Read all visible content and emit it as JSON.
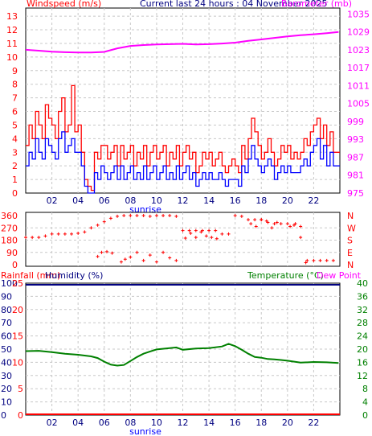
{
  "colors": {
    "windspeed": "#ff0000",
    "wind_avg": "#0000ff",
    "barometer": "#ff00ff",
    "wind_dir": "#ff0000",
    "rainfall": "#ff0000",
    "humidity": "#000080",
    "temperature": "#008000",
    "dew_point": "#ff00ff",
    "grid": "#c8c8c8",
    "sunrise": "#0000ff"
  },
  "chart_data": [
    {
      "type": "line",
      "title": "Current last 24 hours : 04 November 2025",
      "left_axis_label": "Windspeed (m/s)",
      "right_axis_label": "Barometer (mb)",
      "x_tick_labels": [
        "02",
        "04",
        "06",
        "08",
        "10",
        "12",
        "14",
        "16",
        "18",
        "20",
        "22"
      ],
      "x_annotation": "sunrise",
      "left_ticks": [
        "0",
        "1",
        "2",
        "3",
        "4",
        "5",
        "6",
        "7",
        "8",
        "9",
        "10",
        "11",
        "12",
        "13"
      ],
      "right_ticks": [
        "975",
        "981",
        "987",
        "993",
        "999",
        "1005",
        "1011",
        "1017",
        "1023",
        "1029",
        "1035"
      ],
      "ylim_left": [
        0,
        13.6
      ],
      "ylim_right": [
        975,
        1037
      ],
      "grid": true,
      "series": [
        {
          "name": "Gust",
          "axis": "left",
          "x_hours": [
            0,
            0.25,
            0.5,
            0.75,
            1.0,
            1.25,
            1.5,
            1.75,
            2.0,
            2.25,
            2.5,
            2.75,
            3.0,
            3.25,
            3.5,
            3.75,
            4.0,
            4.25,
            4.5,
            4.75,
            5.0,
            5.25,
            5.5,
            5.75,
            6.0,
            6.25,
            6.5,
            6.75,
            7.0,
            7.25,
            7.5,
            7.75,
            8.0,
            8.25,
            8.5,
            8.75,
            9.0,
            9.25,
            9.5,
            9.75,
            10.0,
            10.25,
            10.5,
            10.75,
            11.0,
            11.25,
            11.5,
            11.75,
            12.0,
            12.25,
            12.5,
            12.75,
            13.0,
            13.25,
            13.5,
            13.75,
            14.0,
            14.25,
            14.5,
            14.75,
            15.0,
            15.25,
            15.5,
            15.75,
            16.0,
            16.25,
            16.5,
            16.75,
            17.0,
            17.25,
            17.5,
            17.75,
            18.0,
            18.25,
            18.5,
            18.75,
            19.0,
            19.25,
            19.5,
            19.75,
            20.0,
            20.25,
            20.5,
            20.75,
            21.0,
            21.25,
            21.5,
            21.75,
            22.0,
            22.25,
            22.5,
            22.75,
            23.0,
            23.25,
            23.5
          ],
          "values": [
            3.5,
            5.0,
            4.0,
            6.0,
            5.0,
            4.0,
            6.5,
            5.5,
            5.0,
            4.0,
            6.0,
            7.0,
            4.5,
            5.0,
            7.9,
            4.5,
            5.0,
            3.0,
            1.0,
            0.5,
            0.2,
            3.0,
            2.5,
            3.5,
            3.5,
            2.5,
            3.0,
            3.5,
            2.0,
            3.5,
            2.5,
            3.0,
            3.5,
            2.0,
            3.0,
            2.5,
            3.5,
            2.0,
            3.0,
            3.5,
            2.5,
            3.0,
            3.5,
            2.0,
            3.0,
            2.5,
            3.5,
            2.0,
            3.0,
            3.5,
            2.5,
            3.0,
            1.5,
            2.0,
            3.0,
            2.5,
            3.0,
            2.0,
            2.5,
            3.0,
            2.0,
            1.5,
            2.0,
            2.5,
            2.0,
            1.5,
            3.5,
            2.5,
            4.0,
            5.5,
            4.5,
            3.5,
            2.5,
            3.0,
            4.0,
            3.0,
            2.0,
            2.5,
            3.5,
            3.0,
            3.5,
            2.5,
            3.0,
            2.5,
            3.0,
            4.0,
            3.5,
            4.5,
            5.0,
            5.5,
            4.0,
            5.0,
            3.5,
            4.5,
            3.0
          ]
        },
        {
          "name": "Average",
          "axis": "left",
          "x_hours": [
            0,
            0.25,
            0.5,
            0.75,
            1.0,
            1.25,
            1.5,
            1.75,
            2.0,
            2.25,
            2.5,
            2.75,
            3.0,
            3.25,
            3.5,
            3.75,
            4.0,
            4.25,
            4.5,
            4.75,
            5.0,
            5.25,
            5.5,
            5.75,
            6.0,
            6.25,
            6.5,
            6.75,
            7.0,
            7.25,
            7.5,
            7.75,
            8.0,
            8.25,
            8.5,
            8.75,
            9.0,
            9.25,
            9.5,
            9.75,
            10.0,
            10.25,
            10.5,
            10.75,
            11.0,
            11.25,
            11.5,
            11.75,
            12.0,
            12.25,
            12.5,
            12.75,
            13.0,
            13.25,
            13.5,
            13.75,
            14.0,
            14.25,
            14.5,
            14.75,
            15.0,
            15.25,
            15.5,
            15.75,
            16.0,
            16.25,
            16.5,
            16.75,
            17.0,
            17.25,
            17.5,
            17.75,
            18.0,
            18.25,
            18.5,
            18.75,
            19.0,
            19.25,
            19.5,
            19.75,
            20.0,
            20.25,
            20.5,
            20.75,
            21.0,
            21.25,
            21.5,
            21.75,
            22.0,
            22.25,
            22.5,
            22.75,
            23.0,
            23.25,
            23.5
          ],
          "values": [
            2.0,
            3.0,
            2.5,
            4.0,
            3.0,
            2.5,
            4.0,
            3.5,
            3.0,
            2.5,
            4.0,
            4.5,
            3.0,
            3.5,
            4.0,
            3.0,
            3.0,
            2.0,
            0.5,
            0.0,
            0.0,
            1.5,
            1.0,
            2.0,
            1.5,
            1.0,
            1.5,
            2.0,
            1.0,
            2.0,
            1.0,
            1.5,
            2.0,
            1.0,
            1.5,
            1.0,
            2.0,
            1.0,
            1.5,
            2.0,
            1.0,
            1.5,
            2.0,
            1.0,
            1.5,
            1.0,
            2.0,
            1.0,
            1.5,
            2.0,
            1.0,
            1.5,
            0.5,
            1.0,
            1.5,
            1.0,
            1.5,
            1.0,
            1.0,
            1.5,
            1.0,
            0.5,
            1.0,
            1.0,
            1.0,
            0.5,
            2.0,
            1.5,
            2.5,
            3.5,
            2.5,
            2.0,
            1.5,
            2.0,
            2.5,
            2.0,
            1.0,
            1.5,
            2.0,
            1.5,
            2.0,
            1.5,
            1.5,
            1.5,
            2.0,
            2.5,
            2.0,
            3.0,
            3.5,
            4.0,
            2.5,
            3.5,
            2.0,
            3.0,
            2.0
          ]
        },
        {
          "name": "Barometer",
          "axis": "right",
          "x_hours": [
            0,
            1,
            2,
            3,
            4,
            5,
            6,
            7,
            8,
            9,
            10,
            11,
            12,
            13,
            14,
            15,
            16,
            17,
            18,
            19,
            20,
            21,
            22,
            23,
            23.9
          ],
          "values": [
            1023.0,
            1022.7,
            1022.4,
            1022.2,
            1022.1,
            1022.1,
            1022.3,
            1023.5,
            1024.3,
            1024.6,
            1024.8,
            1024.9,
            1025.0,
            1024.8,
            1024.9,
            1025.1,
            1025.4,
            1026.0,
            1026.5,
            1027.0,
            1027.5,
            1027.9,
            1028.2,
            1028.6,
            1029.0
          ]
        }
      ]
    },
    {
      "type": "scatter",
      "x_tick_labels": [],
      "left_ticks": [
        "360",
        "270",
        "180",
        "90",
        "0"
      ],
      "right_ticks": [
        "N",
        "W",
        "S",
        "E",
        "N"
      ],
      "ylim": [
        0,
        360
      ],
      "grid": true,
      "series": [
        {
          "name": "Wind direction",
          "x_hours": [
            0,
            0.5,
            1.0,
            1.5,
            2.0,
            2.5,
            3.0,
            3.5,
            4.0,
            4.5,
            5.0,
            5.5,
            6.0,
            6.5,
            7.0,
            7.5,
            8.0,
            8.5,
            9.0,
            9.5,
            10.0,
            10.5,
            11.0,
            11.5,
            12.0,
            12.5,
            13.0,
            13.5,
            14.0,
            14.5,
            15.0,
            15.5,
            16.0,
            16.5,
            17.0,
            17.5,
            18.0,
            18.5,
            19.0,
            19.5,
            20.0,
            20.5,
            21.0,
            21.5,
            22.0,
            22.5,
            23.0,
            23.5
          ],
          "values": [
            200,
            200,
            200,
            210,
            225,
            225,
            225,
            225,
            230,
            240,
            270,
            290,
            315,
            340,
            355,
            360,
            360,
            360,
            360,
            355,
            360,
            360,
            360,
            355,
            250,
            250,
            250,
            250,
            250,
            250,
            225,
            225,
            360,
            355,
            330,
            330,
            330,
            310,
            300,
            300,
            300,
            290,
            280,
            30,
            30,
            30,
            30,
            30
          ]
        },
        {
          "name": "Wind direction scatter",
          "x_hours": [
            5.5,
            5.8,
            6.2,
            6.6,
            7.3,
            7.6,
            8.0,
            8.5,
            9.0,
            9.5,
            10.0,
            10.5,
            11.0,
            11.5,
            12.2,
            12.6,
            13.0,
            13.4,
            13.8,
            14.2,
            14.6,
            17.2,
            17.6,
            18.0,
            18.4,
            18.8,
            19.2,
            20.2,
            20.6,
            21.0,
            21.4
          ],
          "values": [
            60,
            90,
            95,
            85,
            20,
            40,
            55,
            90,
            30,
            70,
            20,
            90,
            50,
            30,
            195,
            230,
            200,
            240,
            210,
            200,
            190,
            300,
            280,
            330,
            320,
            270,
            310,
            280,
            300,
            200,
            15
          ]
        }
      ]
    },
    {
      "type": "line",
      "left_axis_label_1": "Rainfall (mm)",
      "left_axis_label_2": "Humidity (%)",
      "right_axis_label_1": "Temperature (°C)",
      "right_axis_label_2": "Dew Point",
      "x_tick_labels": [
        "02",
        "04",
        "06",
        "08",
        "10",
        "12",
        "14",
        "16",
        "18",
        "20",
        "22"
      ],
      "x_annotation": "sunrise",
      "humidity_ticks": [
        "0",
        "10",
        "20",
        "30",
        "40",
        "50",
        "60",
        "70",
        "80",
        "90",
        "100"
      ],
      "rainfall_ticks": [
        "0",
        "5",
        "10",
        "15",
        "20",
        "25"
      ],
      "right_ticks": [
        "0",
        "4",
        "8",
        "12",
        "16",
        "20",
        "24",
        "28",
        "32",
        "36",
        "40"
      ],
      "ylim_humidity": [
        0,
        100
      ],
      "ylim_temperature": [
        0,
        40
      ],
      "grid": true,
      "series": [
        {
          "name": "Rainfall",
          "axis": "left",
          "x_hours": [
            0,
            24
          ],
          "values": [
            0,
            0
          ]
        },
        {
          "name": "Humidity",
          "axis": "left",
          "x_hours": [
            0,
            24
          ],
          "values": [
            100,
            100
          ]
        },
        {
          "name": "Temperature",
          "axis": "right",
          "x_hours": [
            0,
            1,
            2,
            3,
            4,
            5,
            5.5,
            6,
            6.5,
            7,
            7.5,
            8,
            8.5,
            9,
            9.5,
            10,
            11,
            11.5,
            12,
            13,
            14,
            15,
            15.5,
            16,
            16.5,
            17,
            17.5,
            18,
            18.5,
            19,
            19.5,
            20,
            21,
            22,
            23,
            23.9
          ],
          "values": [
            19.4,
            19.5,
            19.1,
            18.6,
            18.3,
            17.8,
            17.3,
            16.2,
            15.3,
            15.0,
            15.2,
            16.4,
            17.6,
            18.6,
            19.3,
            19.9,
            20.3,
            20.5,
            19.8,
            20.2,
            20.3,
            20.8,
            21.6,
            20.9,
            19.8,
            18.6,
            17.6,
            17.4,
            17.0,
            16.9,
            16.7,
            16.5,
            15.9,
            16.1,
            16.0,
            15.8
          ]
        }
      ]
    }
  ]
}
